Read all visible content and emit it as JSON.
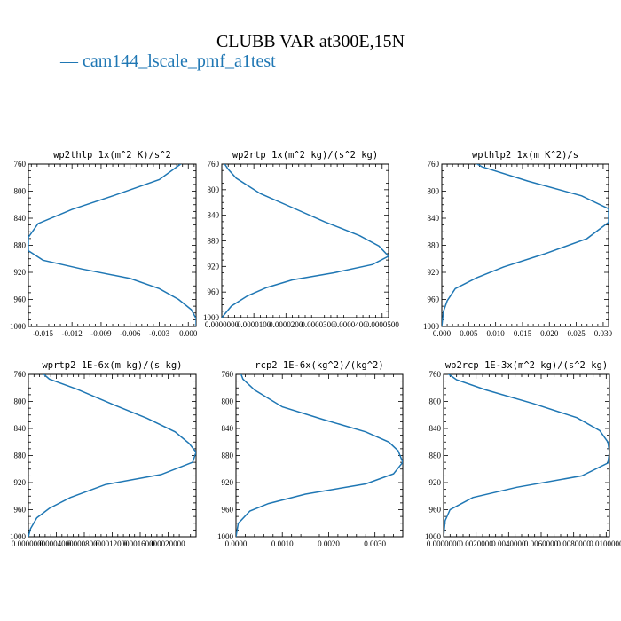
{
  "title": "CLUBB VAR at300E,15N",
  "legend": {
    "line": "—",
    "label": "cam144_lscale_pmf_a1test"
  },
  "colors": {
    "series": "#1f77b4",
    "axis": "#000000"
  },
  "chart_data": [
    {
      "type": "line",
      "title": "wp2thlp  1x(m^2 K)/s^2",
      "xlim": [
        -0.0165,
        0.0008
      ],
      "ylim": [
        760,
        1000
      ],
      "y_reversed": true,
      "xticks": [
        -0.015,
        -0.012,
        -0.009,
        -0.006,
        -0.003,
        0.0
      ],
      "xtick_labels": [
        "-0.015",
        "-0.012",
        "-0.009",
        "-0.006",
        "-0.003",
        "0.000"
      ],
      "yticks": [
        760,
        800,
        840,
        880,
        920,
        960,
        1000
      ],
      "series": [
        {
          "x": [
            -0.0005,
            -0.003,
            -0.008,
            -0.012,
            -0.0155,
            -0.0165,
            -0.0165,
            -0.015,
            -0.011,
            -0.006,
            -0.003,
            -0.001,
            0.0003,
            0.0008,
            0.0008
          ],
          "y": [
            757,
            783,
            808,
            827,
            848,
            868,
            888,
            902,
            915,
            929,
            944,
            960,
            975,
            988,
            1000
          ]
        }
      ]
    },
    {
      "type": "line",
      "title": "wp2rtp  1x(m^2 kg)/(s^2 kg)",
      "xlim": [
        0,
        5.2e-05
      ],
      "ylim": [
        760,
        1000
      ],
      "y_reversed": true,
      "xticks": [
        0,
        1e-05,
        2e-05,
        3e-05,
        4e-05,
        5e-05
      ],
      "xtick_labels": [
        "0.0000000",
        "0.0000100",
        "0.0000200",
        "0.0000300",
        "0.0000400",
        "0.0000500"
      ],
      "yticks": [
        760,
        800,
        840,
        880,
        920,
        960,
        1000
      ],
      "series": [
        {
          "x": [
            5e-07,
            2e-06,
            4.5e-06,
            1.2e-05,
            2.2e-05,
            3.2e-05,
            4.3e-05,
            4.9e-05,
            5.2e-05,
            4.7e-05,
            3.5e-05,
            2.2e-05,
            1.4e-05,
            8e-06,
            3e-06,
            0
          ],
          "y": [
            757,
            768,
            782,
            806,
            828,
            850,
            872,
            888,
            904,
            917,
            930,
            941,
            953,
            966,
            982,
            1000
          ]
        }
      ]
    },
    {
      "type": "line",
      "title": "wpthlp2  1x(m K^2)/s",
      "xlim": [
        0,
        0.031
      ],
      "ylim": [
        760,
        1000
      ],
      "y_reversed": true,
      "xticks": [
        0,
        0.005,
        0.01,
        0.015,
        0.02,
        0.025,
        0.03
      ],
      "xtick_labels": [
        "0.000",
        "0.005",
        "0.010",
        "0.015",
        "0.020",
        "0.025",
        "0.030"
      ],
      "yticks": [
        760,
        800,
        840,
        880,
        920,
        960,
        1000
      ],
      "series": [
        {
          "x": [
            0.0055,
            0.0075,
            0.016,
            0.026,
            0.031,
            0.031,
            0.027,
            0.019,
            0.0115,
            0.0065,
            0.0025,
            0.001,
            0.0003,
            0
          ],
          "y": [
            755,
            764,
            785,
            807,
            826,
            846,
            870,
            893,
            912,
            928,
            944,
            962,
            978,
            1000
          ]
        }
      ]
    },
    {
      "type": "line",
      "title": "wprtp2  1E-6x(m kg)/(s kg)",
      "xlim": [
        0,
        0.0024
      ],
      "ylim": [
        760,
        1000
      ],
      "y_reversed": true,
      "xticks": [
        0,
        0.0004,
        0.0008,
        0.0012,
        0.0016,
        0.002
      ],
      "xtick_labels": [
        "0.0000000",
        "0.0004000",
        "0.0008000",
        "0.0012000",
        "0.0016000",
        "0.0020000"
      ],
      "yticks": [
        760,
        800,
        840,
        880,
        920,
        960,
        1000
      ],
      "series": [
        {
          "x": [
            0.0002,
            0.0003,
            0.0007,
            0.0012,
            0.0017,
            0.0021,
            0.0023,
            0.0024,
            0.00235,
            0.0019,
            0.0011,
            0.0006,
            0.0003,
            0.00012,
            3e-05,
            0
          ],
          "y": [
            758,
            767,
            782,
            804,
            825,
            845,
            862,
            875,
            890,
            908,
            923,
            942,
            958,
            972,
            988,
            1000
          ]
        }
      ]
    },
    {
      "type": "line",
      "title": "rcp2  1E-6x(kg^2)/(kg^2)",
      "xlim": [
        0,
        0.0036
      ],
      "ylim": [
        760,
        1000
      ],
      "y_reversed": true,
      "xticks": [
        0,
        0.001,
        0.002,
        0.003
      ],
      "xtick_labels": [
        "0.0000",
        "0.0010",
        "0.0020",
        "0.0030"
      ],
      "yticks": [
        760,
        800,
        840,
        880,
        920,
        960,
        1000
      ],
      "series": [
        {
          "x": [
            0.0001,
            0.00015,
            0.0004,
            0.001,
            0.0019,
            0.0028,
            0.0033,
            0.0035,
            0.0036,
            0.0034,
            0.0028,
            0.0015,
            0.0007,
            0.0003,
            5e-05,
            0
          ],
          "y": [
            758,
            767,
            783,
            808,
            827,
            845,
            860,
            873,
            890,
            907,
            922,
            937,
            951,
            962,
            980,
            1000
          ]
        }
      ]
    },
    {
      "type": "line",
      "title": "wp2rcp  1E-3x(m^2 kg)/(s^2 kg)",
      "xlim": [
        0,
        0.0102
      ],
      "ylim": [
        760,
        1000
      ],
      "y_reversed": true,
      "xticks": [
        0,
        0.002,
        0.004,
        0.006,
        0.008,
        0.01
      ],
      "xtick_labels": [
        "0.0000000",
        "0.0020000",
        "0.0040000",
        "0.0060000",
        "0.0080000",
        "0.0100000"
      ],
      "yticks": [
        760,
        800,
        840,
        880,
        920,
        960,
        1000
      ],
      "series": [
        {
          "x": [
            0.0002,
            0.0008,
            0.0026,
            0.0055,
            0.0082,
            0.0096,
            0.0101,
            0.0102,
            0.0101,
            0.0085,
            0.0045,
            0.0018,
            0.0004,
            0.0001,
            0
          ],
          "y": [
            758,
            768,
            783,
            803,
            824,
            843,
            860,
            875,
            891,
            910,
            927,
            942,
            960,
            976,
            1000
          ]
        }
      ]
    }
  ]
}
